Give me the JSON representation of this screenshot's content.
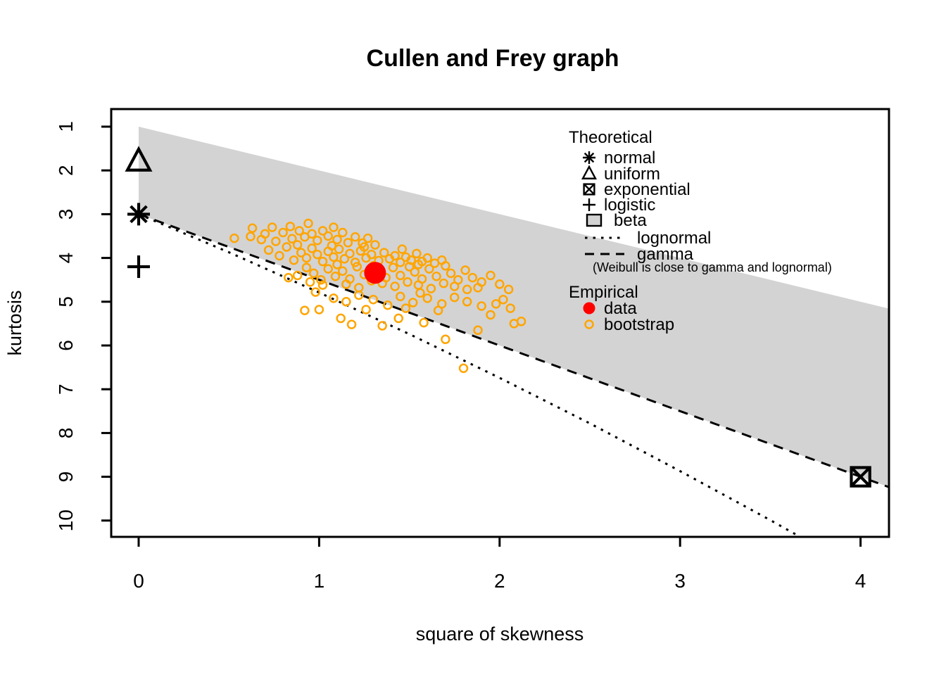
{
  "title": "Cullen and Frey graph",
  "colors": {
    "beta_region": "#d3d3d3",
    "bootstrap": "#ffa500",
    "data": "#ff0000",
    "line": "#000000"
  },
  "legend": {
    "theoretical_header": "Theoretical",
    "theoretical_items": [
      {
        "label": "normal",
        "marker": "asterisk8"
      },
      {
        "label": "uniform",
        "marker": "triangle"
      },
      {
        "label": "exponential",
        "marker": "boxed-x"
      },
      {
        "label": "logistic",
        "marker": "plus"
      },
      {
        "label": "beta",
        "marker": "filled-square"
      },
      {
        "label": "lognormal",
        "marker": "dotted-line"
      },
      {
        "label": "gamma",
        "marker": "dashed-line"
      }
    ],
    "note": "(Weibull is close to gamma and lognormal)",
    "empirical_header": "Empirical",
    "empirical_items": [
      {
        "label": "data",
        "marker": "filled-circle",
        "color": "#ff0000"
      },
      {
        "label": "bootstrap",
        "marker": "open-circle",
        "color": "#ffa500"
      }
    ]
  },
  "chart_data": {
    "type": "scatter",
    "title": "Cullen and Frey graph",
    "xlabel": "square of skewness",
    "ylabel": "kurtosis",
    "x_ticks": [
      0,
      1,
      2,
      3,
      4
    ],
    "y_ticks": [
      1,
      2,
      3,
      4,
      5,
      6,
      7,
      8,
      9,
      10
    ],
    "xlim": [
      -0.152,
      4.158
    ],
    "ylim": [
      10.37,
      0.6
    ],
    "y_axis_reversed": true,
    "grid": false,
    "beta_region_polygon": [
      [
        0,
        1
      ],
      [
        4.158,
        5.158
      ],
      [
        4.158,
        9.237
      ],
      [
        0,
        3
      ]
    ],
    "gamma_line": [
      [
        0,
        3
      ],
      [
        4.158,
        9.237
      ]
    ],
    "lognormal_curve": [
      [
        0,
        3.0
      ],
      [
        0.5,
        3.87
      ],
      [
        1.0,
        4.79
      ],
      [
        1.5,
        5.74
      ],
      [
        2.0,
        6.74
      ],
      [
        2.5,
        7.78
      ],
      [
        3.0,
        8.87
      ],
      [
        3.5,
        9.99
      ],
      [
        3.75,
        10.57
      ]
    ],
    "theoretical_points": [
      {
        "name": "uniform",
        "marker": "triangle",
        "x": 0,
        "y": 1.8
      },
      {
        "name": "normal",
        "marker": "asterisk8",
        "x": 0,
        "y": 3
      },
      {
        "name": "logistic",
        "marker": "plus",
        "x": 0,
        "y": 4.2
      },
      {
        "name": "exponential",
        "marker": "boxed-x",
        "x": 4,
        "y": 9
      }
    ],
    "empirical_data_point": {
      "x": 1.31,
      "y": 4.34
    },
    "bootstrap_points": [
      [
        0.53,
        3.55
      ],
      [
        0.62,
        3.51
      ],
      [
        0.63,
        3.32
      ],
      [
        0.7,
        3.45
      ],
      [
        0.74,
        3.3
      ],
      [
        0.76,
        3.62
      ],
      [
        0.8,
        3.42
      ],
      [
        0.84,
        3.28
      ],
      [
        0.85,
        3.56
      ],
      [
        0.89,
        3.38
      ],
      [
        0.92,
        3.52
      ],
      [
        0.94,
        3.21
      ],
      [
        0.96,
        3.45
      ],
      [
        0.99,
        3.6
      ],
      [
        1.02,
        3.38
      ],
      [
        1.05,
        3.5
      ],
      [
        1.08,
        3.3
      ],
      [
        1.1,
        3.58
      ],
      [
        1.13,
        3.42
      ],
      [
        1.16,
        3.65
      ],
      [
        1.2,
        3.52
      ],
      [
        1.24,
        3.66
      ],
      [
        1.27,
        3.55
      ],
      [
        1.31,
        3.7
      ],
      [
        0.68,
        3.58
      ],
      [
        0.72,
        3.82
      ],
      [
        0.78,
        3.95
      ],
      [
        0.82,
        3.75
      ],
      [
        0.86,
        4.05
      ],
      [
        0.9,
        3.88
      ],
      [
        0.93,
        4.0
      ],
      [
        0.96,
        3.78
      ],
      [
        0.99,
        3.92
      ],
      [
        1.02,
        4.08
      ],
      [
        1.05,
        3.85
      ],
      [
        1.08,
        3.98
      ],
      [
        1.11,
        3.8
      ],
      [
        1.14,
        4.02
      ],
      [
        1.17,
        3.9
      ],
      [
        1.2,
        4.1
      ],
      [
        1.23,
        3.84
      ],
      [
        1.26,
        4.0
      ],
      [
        1.29,
        3.92
      ],
      [
        1.33,
        4.06
      ],
      [
        1.36,
        3.88
      ],
      [
        1.39,
        4.02
      ],
      [
        1.42,
        3.95
      ],
      [
        1.45,
        4.1
      ],
      [
        1.48,
        3.98
      ],
      [
        1.51,
        4.05
      ],
      [
        1.54,
        3.9
      ],
      [
        1.57,
        4.08
      ],
      [
        1.6,
        4.0
      ],
      [
        1.64,
        4.12
      ],
      [
        1.68,
        4.05
      ],
      [
        0.88,
        3.7
      ],
      [
        1.07,
        3.72
      ],
      [
        1.25,
        3.75
      ],
      [
        1.46,
        3.8
      ],
      [
        1.55,
        4.15
      ],
      [
        0.83,
        4.45
      ],
      [
        0.88,
        4.4
      ],
      [
        0.93,
        4.22
      ],
      [
        0.97,
        4.35
      ],
      [
        1.01,
        4.5
      ],
      [
        1.05,
        4.25
      ],
      [
        1.09,
        4.42
      ],
      [
        1.13,
        4.3
      ],
      [
        1.17,
        4.48
      ],
      [
        1.21,
        4.2
      ],
      [
        1.25,
        4.38
      ],
      [
        1.29,
        4.52
      ],
      [
        1.33,
        4.28
      ],
      [
        1.37,
        4.45
      ],
      [
        1.41,
        4.22
      ],
      [
        1.45,
        4.4
      ],
      [
        1.49,
        4.55
      ],
      [
        1.53,
        4.32
      ],
      [
        1.57,
        4.48
      ],
      [
        1.61,
        4.25
      ],
      [
        1.65,
        4.42
      ],
      [
        1.69,
        4.58
      ],
      [
        1.73,
        4.35
      ],
      [
        1.77,
        4.5
      ],
      [
        1.81,
        4.28
      ],
      [
        1.85,
        4.45
      ],
      [
        1.9,
        4.55
      ],
      [
        1.95,
        4.4
      ],
      [
        2.0,
        4.6
      ],
      [
        1.1,
        4.15
      ],
      [
        1.3,
        4.18
      ],
      [
        1.5,
        4.2
      ],
      [
        1.7,
        4.18
      ],
      [
        0.95,
        4.55
      ],
      [
        1.15,
        4.6
      ],
      [
        1.35,
        4.58
      ],
      [
        1.55,
        4.62
      ],
      [
        1.75,
        4.65
      ],
      [
        1.88,
        4.68
      ],
      [
        2.05,
        4.72
      ],
      [
        1.42,
        4.65
      ],
      [
        1.22,
        4.68
      ],
      [
        1.02,
        4.62
      ],
      [
        1.62,
        4.7
      ],
      [
        1.82,
        4.72
      ],
      [
        0.92,
        5.2
      ],
      [
        1.0,
        5.18
      ],
      [
        1.08,
        4.92
      ],
      [
        1.15,
        5.0
      ],
      [
        1.22,
        4.85
      ],
      [
        1.3,
        4.95
      ],
      [
        1.38,
        5.08
      ],
      [
        1.45,
        4.88
      ],
      [
        1.52,
        5.02
      ],
      [
        1.6,
        4.92
      ],
      [
        1.68,
        5.05
      ],
      [
        1.75,
        4.9
      ],
      [
        1.82,
        5.0
      ],
      [
        1.9,
        5.1
      ],
      [
        1.98,
        5.05
      ],
      [
        2.06,
        5.15
      ],
      [
        2.12,
        5.45
      ],
      [
        1.12,
        5.38
      ],
      [
        1.26,
        5.18
      ],
      [
        1.48,
        5.15
      ],
      [
        1.66,
        5.2
      ],
      [
        1.95,
        5.3
      ],
      [
        2.02,
        4.95
      ],
      [
        1.56,
        4.8
      ],
      [
        0.98,
        4.78
      ],
      [
        1.35,
        5.55
      ],
      [
        1.7,
        5.86
      ],
      [
        1.8,
        6.52
      ],
      [
        1.58,
        5.48
      ],
      [
        1.88,
        5.65
      ],
      [
        1.44,
        5.38
      ],
      [
        2.08,
        5.5
      ],
      [
        1.18,
        5.52
      ]
    ]
  }
}
